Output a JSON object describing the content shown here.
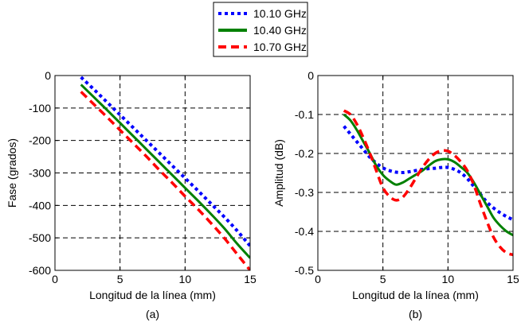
{
  "legend": {
    "placement": "top-center",
    "entries": [
      {
        "label": "10.10 GHz",
        "color": "#0000ff",
        "style": "dotted"
      },
      {
        "label": "10.40 GHz",
        "color": "#008000",
        "style": "solid"
      },
      {
        "label": "10.70 GHz",
        "color": "#ff0000",
        "style": "dashed"
      }
    ]
  },
  "chart_data": [
    {
      "type": "line",
      "panel_label": "(a)",
      "xlabel": "Longitud de la línea (mm)",
      "ylabel": "Fase (grados)",
      "xlim": [
        0,
        15
      ],
      "ylim": [
        -600,
        0
      ],
      "xticks": [
        0,
        5,
        10,
        15
      ],
      "yticks": [
        0,
        -100,
        -200,
        -300,
        -400,
        -500,
        -600
      ],
      "grid": true,
      "x": [
        2,
        3,
        4,
        5,
        6,
        7,
        8,
        9,
        10,
        11,
        12,
        13,
        14,
        15
      ],
      "series": [
        {
          "name": "10.10 GHz",
          "values": [
            -5,
            -43,
            -82,
            -121,
            -160,
            -199,
            -238,
            -277,
            -316,
            -355,
            -395,
            -435,
            -478,
            -525
          ]
        },
        {
          "name": "10.40 GHz",
          "values": [
            -28,
            -67,
            -106,
            -146,
            -186,
            -226,
            -266,
            -306,
            -346,
            -386,
            -427,
            -470,
            -518,
            -562
          ]
        },
        {
          "name": "10.70 GHz",
          "values": [
            -50,
            -89,
            -128,
            -168,
            -208,
            -248,
            -290,
            -330,
            -372,
            -412,
            -455,
            -500,
            -550,
            -600
          ]
        }
      ]
    },
    {
      "type": "line",
      "panel_label": "(b)",
      "xlabel": "Longitud de la línea (mm)",
      "ylabel": "Amplitud (dB)",
      "xlim": [
        0,
        15
      ],
      "ylim": [
        -0.5,
        0
      ],
      "xticks": [
        0,
        5,
        10,
        15
      ],
      "yticks": [
        0,
        -0.1,
        -0.2,
        -0.3,
        -0.4,
        -0.5
      ],
      "grid": true,
      "x": [
        2,
        2.5,
        3,
        3.5,
        4,
        4.5,
        5,
        5.5,
        6,
        6.5,
        7,
        7.5,
        8,
        8.5,
        9,
        9.5,
        10,
        10.5,
        11,
        11.5,
        12,
        12.5,
        13,
        13.5,
        14,
        14.5,
        15
      ],
      "series": [
        {
          "name": "10.10 GHz",
          "values": [
            -0.13,
            -0.15,
            -0.17,
            -0.19,
            -0.21,
            -0.225,
            -0.237,
            -0.244,
            -0.248,
            -0.249,
            -0.247,
            -0.244,
            -0.241,
            -0.239,
            -0.238,
            -0.236,
            -0.236,
            -0.241,
            -0.25,
            -0.265,
            -0.285,
            -0.305,
            -0.325,
            -0.34,
            -0.352,
            -0.362,
            -0.37
          ]
        },
        {
          "name": "10.40 GHz",
          "values": [
            -0.1,
            -0.115,
            -0.14,
            -0.17,
            -0.2,
            -0.232,
            -0.255,
            -0.27,
            -0.28,
            -0.275,
            -0.265,
            -0.255,
            -0.245,
            -0.232,
            -0.22,
            -0.215,
            -0.215,
            -0.222,
            -0.235,
            -0.25,
            -0.275,
            -0.305,
            -0.335,
            -0.365,
            -0.385,
            -0.4,
            -0.41
          ]
        },
        {
          "name": "10.70 GHz",
          "values": [
            -0.09,
            -0.1,
            -0.125,
            -0.16,
            -0.2,
            -0.245,
            -0.288,
            -0.31,
            -0.32,
            -0.313,
            -0.292,
            -0.265,
            -0.238,
            -0.216,
            -0.2,
            -0.193,
            -0.194,
            -0.205,
            -0.222,
            -0.245,
            -0.282,
            -0.33,
            -0.375,
            -0.415,
            -0.44,
            -0.455,
            -0.46
          ]
        }
      ]
    }
  ]
}
